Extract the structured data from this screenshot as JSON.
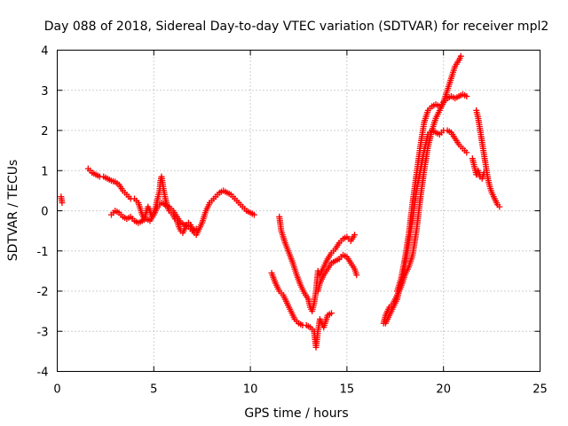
{
  "chart_data": {
    "type": "scatter",
    "title": "Day 088 of 2018, Sidereal Day-to-day VTEC variation (SDTVAR) for receiver mpl2",
    "xlabel": "GPS time / hours",
    "ylabel": "SDTVAR / TECUs",
    "xlim": [
      0,
      25
    ],
    "ylim": [
      -4,
      4
    ],
    "xticks": [
      "0",
      "5",
      "10",
      "15",
      "20",
      "25"
    ],
    "yticks": [
      "-4",
      "-3",
      "-2",
      "-1",
      "0",
      "1",
      "2",
      "3",
      "4"
    ],
    "grid": true,
    "marker": "plus",
    "color": "#ff0000",
    "series": [
      {
        "segments": [
          [
            [
              0.2,
              0.35
            ],
            [
              0.25,
              0.2
            ]
          ],
          [
            [
              1.6,
              1.05
            ],
            [
              1.8,
              0.95
            ],
            [
              2.0,
              0.9
            ],
            [
              2.2,
              0.85
            ],
            [
              2.4,
              0.85
            ],
            [
              2.6,
              0.8
            ],
            [
              2.8,
              0.75
            ],
            [
              3.0,
              0.72
            ],
            [
              3.2,
              0.65
            ],
            [
              3.4,
              0.5
            ],
            [
              3.6,
              0.4
            ],
            [
              3.8,
              0.3
            ],
            [
              4.0,
              0.3
            ],
            [
              4.2,
              0.2
            ],
            [
              4.3,
              0.05
            ],
            [
              4.4,
              -0.1
            ],
            [
              4.5,
              -0.2
            ],
            [
              4.6,
              -0.05
            ],
            [
              4.7,
              0.1
            ],
            [
              4.8,
              0.0
            ],
            [
              4.9,
              -0.15
            ],
            [
              5.0,
              -0.05
            ],
            [
              5.1,
              0.1
            ],
            [
              5.2,
              0.3
            ],
            [
              5.3,
              0.5
            ],
            [
              5.35,
              0.75
            ],
            [
              5.4,
              0.85
            ],
            [
              5.5,
              0.55
            ],
            [
              5.6,
              0.3
            ],
            [
              5.7,
              0.1
            ],
            [
              5.8,
              0.0
            ],
            [
              5.9,
              -0.05
            ],
            [
              6.0,
              -0.1
            ],
            [
              6.1,
              -0.2
            ],
            [
              6.2,
              -0.25
            ],
            [
              6.3,
              -0.4
            ],
            [
              6.4,
              -0.5
            ],
            [
              6.5,
              -0.55
            ],
            [
              6.6,
              -0.45
            ],
            [
              6.7,
              -0.35
            ],
            [
              6.8,
              -0.3
            ],
            [
              6.9,
              -0.35
            ],
            [
              7.0,
              -0.45
            ],
            [
              7.1,
              -0.55
            ],
            [
              7.2,
              -0.6
            ],
            [
              7.3,
              -0.5
            ],
            [
              7.4,
              -0.4
            ],
            [
              7.5,
              -0.3
            ],
            [
              7.6,
              -0.15
            ],
            [
              7.7,
              0.0
            ],
            [
              7.8,
              0.1
            ],
            [
              7.9,
              0.2
            ],
            [
              8.0,
              0.25
            ],
            [
              8.2,
              0.35
            ],
            [
              8.4,
              0.45
            ],
            [
              8.6,
              0.5
            ],
            [
              8.8,
              0.45
            ],
            [
              9.0,
              0.4
            ],
            [
              9.2,
              0.3
            ],
            [
              9.4,
              0.2
            ],
            [
              9.6,
              0.1
            ],
            [
              9.8,
              0.0
            ],
            [
              10.0,
              -0.05
            ],
            [
              10.2,
              -0.1
            ]
          ],
          [
            [
              2.8,
              -0.1
            ],
            [
              3.0,
              0.0
            ],
            [
              3.2,
              -0.05
            ],
            [
              3.4,
              -0.15
            ],
            [
              3.6,
              -0.2
            ],
            [
              3.8,
              -0.15
            ],
            [
              4.0,
              -0.25
            ],
            [
              4.2,
              -0.3
            ],
            [
              4.4,
              -0.25
            ],
            [
              4.6,
              -0.2
            ],
            [
              4.8,
              -0.25
            ],
            [
              5.0,
              -0.1
            ],
            [
              5.2,
              0.1
            ],
            [
              5.4,
              0.2
            ],
            [
              5.6,
              0.15
            ],
            [
              5.8,
              0.1
            ],
            [
              6.0,
              0.0
            ],
            [
              6.2,
              -0.15
            ],
            [
              6.4,
              -0.3
            ],
            [
              6.6,
              -0.35
            ],
            [
              6.8,
              -0.4
            ],
            [
              7.0,
              -0.5
            ],
            [
              7.2,
              -0.45
            ]
          ],
          [
            [
              11.1,
              -1.55
            ],
            [
              11.3,
              -1.8
            ],
            [
              11.5,
              -2.0
            ],
            [
              11.7,
              -2.1
            ],
            [
              11.9,
              -2.3
            ],
            [
              12.1,
              -2.5
            ],
            [
              12.3,
              -2.7
            ],
            [
              12.5,
              -2.8
            ],
            [
              12.7,
              -2.85
            ],
            [
              12.9,
              -2.85
            ],
            [
              13.1,
              -2.9
            ],
            [
              13.3,
              -3.0
            ],
            [
              13.35,
              -3.2
            ],
            [
              13.4,
              -3.4
            ],
            [
              13.5,
              -3.0
            ],
            [
              13.6,
              -2.7
            ],
            [
              13.8,
              -2.9
            ],
            [
              14.0,
              -2.6
            ],
            [
              14.2,
              -2.55
            ]
          ],
          [
            [
              11.5,
              -0.15
            ],
            [
              11.6,
              -0.5
            ],
            [
              11.8,
              -0.8
            ],
            [
              12.0,
              -1.05
            ],
            [
              12.2,
              -1.3
            ],
            [
              12.4,
              -1.6
            ],
            [
              12.6,
              -1.85
            ],
            [
              12.8,
              -2.05
            ],
            [
              13.0,
              -2.2
            ],
            [
              13.1,
              -2.4
            ],
            [
              13.2,
              -2.5
            ],
            [
              13.3,
              -2.3
            ],
            [
              13.4,
              -2.0
            ],
            [
              13.5,
              -1.5
            ],
            [
              13.6,
              -1.6
            ],
            [
              13.8,
              -1.4
            ],
            [
              14.0,
              -1.2
            ],
            [
              14.2,
              -1.05
            ],
            [
              14.4,
              -0.95
            ],
            [
              14.6,
              -0.8
            ],
            [
              14.8,
              -0.7
            ],
            [
              15.0,
              -0.65
            ],
            [
              15.2,
              -0.75
            ],
            [
              15.4,
              -0.6
            ]
          ],
          [
            [
              13.5,
              -2.0
            ],
            [
              13.6,
              -1.8
            ],
            [
              13.8,
              -1.6
            ],
            [
              14.0,
              -1.45
            ],
            [
              14.2,
              -1.3
            ],
            [
              14.4,
              -1.25
            ],
            [
              14.6,
              -1.2
            ],
            [
              14.8,
              -1.1
            ],
            [
              15.0,
              -1.15
            ],
            [
              15.2,
              -1.3
            ],
            [
              15.4,
              -1.45
            ],
            [
              15.5,
              -1.6
            ]
          ],
          [
            [
              16.9,
              -2.8
            ],
            [
              17.0,
              -2.6
            ],
            [
              17.2,
              -2.4
            ],
            [
              17.4,
              -2.3
            ],
            [
              17.6,
              -2.1
            ],
            [
              17.8,
              -1.9
            ],
            [
              18.0,
              -1.6
            ],
            [
              18.2,
              -1.4
            ],
            [
              18.4,
              -1.1
            ],
            [
              18.6,
              -0.5
            ],
            [
              18.8,
              0.3
            ],
            [
              19.0,
              1.0
            ],
            [
              19.2,
              1.6
            ],
            [
              19.4,
              2.0
            ],
            [
              19.6,
              2.3
            ],
            [
              19.8,
              2.5
            ],
            [
              20.0,
              2.7
            ],
            [
              20.2,
              3.0
            ],
            [
              20.4,
              3.3
            ],
            [
              20.6,
              3.6
            ],
            [
              20.8,
              3.75
            ],
            [
              20.9,
              3.85
            ]
          ],
          [
            [
              17.0,
              -2.8
            ],
            [
              17.2,
              -2.6
            ],
            [
              17.4,
              -2.4
            ],
            [
              17.6,
              -2.2
            ],
            [
              17.8,
              -1.8
            ],
            [
              18.0,
              -1.4
            ],
            [
              18.2,
              -0.8
            ],
            [
              18.4,
              -0.2
            ],
            [
              18.6,
              0.5
            ],
            [
              18.8,
              1.0
            ],
            [
              19.0,
              1.5
            ],
            [
              19.2,
              1.9
            ],
            [
              19.4,
              2.0
            ],
            [
              19.6,
              1.95
            ],
            [
              19.8,
              1.9
            ],
            [
              20.0,
              2.0
            ],
            [
              20.2,
              2.0
            ],
            [
              20.4,
              1.95
            ],
            [
              20.6,
              1.8
            ],
            [
              20.8,
              1.65
            ],
            [
              21.0,
              1.55
            ],
            [
              21.2,
              1.45
            ]
          ],
          [
            [
              17.6,
              -2.0
            ],
            [
              17.8,
              -1.7
            ],
            [
              18.0,
              -1.2
            ],
            [
              18.2,
              -0.6
            ],
            [
              18.4,
              0.2
            ],
            [
              18.6,
              0.9
            ],
            [
              18.8,
              1.6
            ],
            [
              19.0,
              2.2
            ],
            [
              19.2,
              2.5
            ],
            [
              19.4,
              2.6
            ],
            [
              19.6,
              2.65
            ],
            [
              19.8,
              2.6
            ],
            [
              20.0,
              2.7
            ],
            [
              20.2,
              2.8
            ],
            [
              20.4,
              2.85
            ],
            [
              20.6,
              2.8
            ],
            [
              20.8,
              2.85
            ],
            [
              21.0,
              2.9
            ],
            [
              21.2,
              2.85
            ]
          ],
          [
            [
              21.5,
              1.3
            ],
            [
              21.6,
              1.1
            ],
            [
              21.7,
              0.9
            ],
            [
              21.8,
              1.0
            ],
            [
              21.9,
              0.85
            ],
            [
              22.0,
              0.8
            ],
            [
              22.1,
              0.95
            ]
          ],
          [
            [
              21.7,
              2.5
            ],
            [
              21.8,
              2.3
            ],
            [
              21.9,
              2.0
            ],
            [
              22.0,
              1.7
            ],
            [
              22.1,
              1.4
            ],
            [
              22.2,
              1.1
            ],
            [
              22.3,
              0.8
            ],
            [
              22.4,
              0.6
            ],
            [
              22.5,
              0.45
            ],
            [
              22.6,
              0.35
            ],
            [
              22.7,
              0.25
            ],
            [
              22.8,
              0.15
            ],
            [
              22.9,
              0.1
            ]
          ]
        ]
      }
    ]
  }
}
